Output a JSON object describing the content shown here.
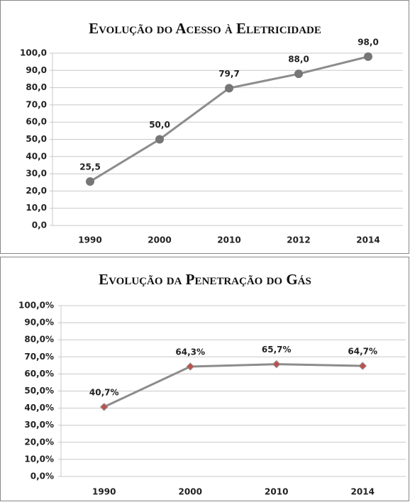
{
  "chart_data": [
    {
      "type": "line",
      "title": "Evolução do Acesso à Eletricidade",
      "categories": [
        "1990",
        "2000",
        "2010",
        "2012",
        "2014"
      ],
      "values": [
        25.5,
        50.0,
        79.7,
        88.0,
        98.0
      ],
      "value_labels": [
        "25,5",
        "50,0",
        "79,7",
        "88,0",
        "98,0"
      ],
      "ylim": [
        0,
        100
      ],
      "yticks": [
        {
          "value": 0,
          "label": "0,0"
        },
        {
          "value": 10,
          "label": "10,0"
        },
        {
          "value": 20,
          "label": "20,0"
        },
        {
          "value": 30,
          "label": "30,0"
        },
        {
          "value": 40,
          "label": "40,0"
        },
        {
          "value": 50,
          "label": "50,0"
        },
        {
          "value": 60,
          "label": "60,0"
        },
        {
          "value": 70,
          "label": "70,0"
        },
        {
          "value": 80,
          "label": "80,0"
        },
        {
          "value": 90,
          "label": "90,0"
        },
        {
          "value": 100,
          "label": "100,0"
        }
      ],
      "grid": true,
      "color": "#8c8c8c",
      "marker": "circle",
      "marker_color": "#767676"
    },
    {
      "type": "line",
      "title": "Evolução da Penetração do Gás",
      "categories": [
        "1990",
        "2000",
        "2010",
        "2014"
      ],
      "values": [
        40.7,
        64.3,
        65.7,
        64.7
      ],
      "value_labels": [
        "40,7%",
        "64,3%",
        "65,7%",
        "64,7%"
      ],
      "ylim": [
        0,
        100
      ],
      "yticks": [
        {
          "value": 0,
          "label": "0,0%"
        },
        {
          "value": 10,
          "label": "10,0%"
        },
        {
          "value": 20,
          "label": "20,0%"
        },
        {
          "value": 30,
          "label": "30,0%"
        },
        {
          "value": 40,
          "label": "40,0%"
        },
        {
          "value": 50,
          "label": "50,0%"
        },
        {
          "value": 60,
          "label": "60,0%"
        },
        {
          "value": 70,
          "label": "70,0%"
        },
        {
          "value": 80,
          "label": "80,0%"
        },
        {
          "value": 90,
          "label": "90,0%"
        },
        {
          "value": 100,
          "label": "100,0%"
        }
      ],
      "grid": true,
      "color": "#8c8c8c",
      "marker": "diamond",
      "marker_color": "#c0504d"
    }
  ]
}
